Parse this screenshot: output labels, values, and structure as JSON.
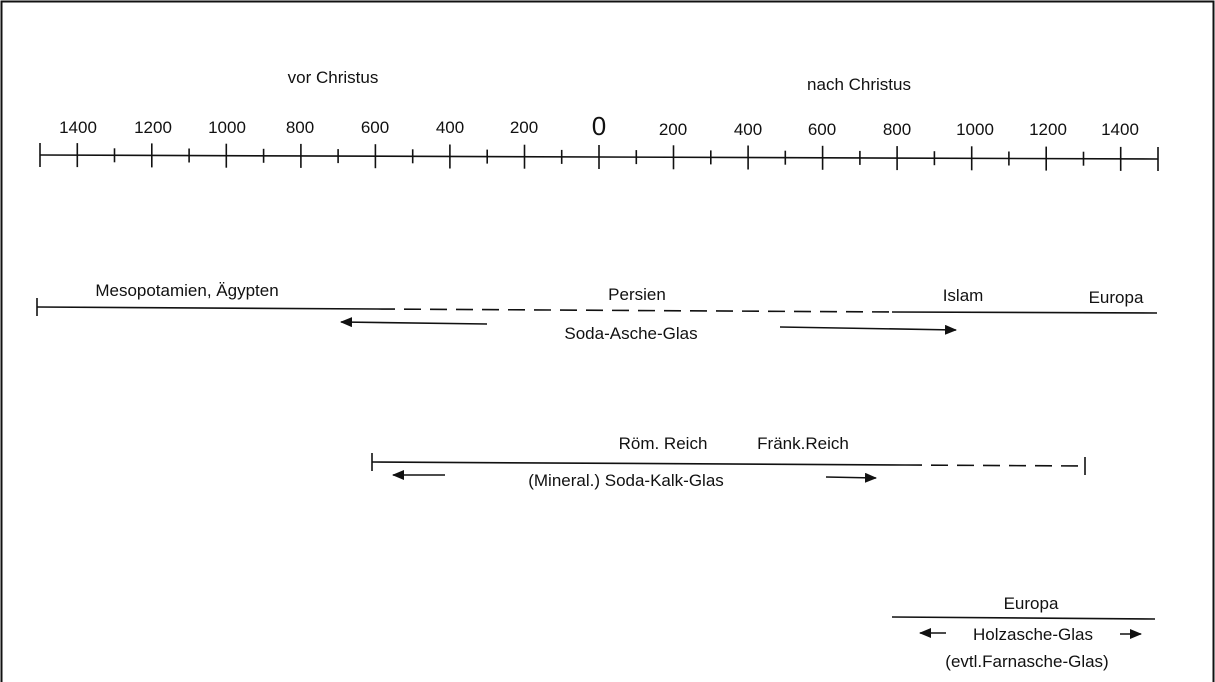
{
  "eras": {
    "bc": "vor Christus",
    "ad": "nach Christus"
  },
  "axis": {
    "bc_ticks": [
      "1400",
      "1200",
      "1000",
      "800",
      "600",
      "400",
      "200"
    ],
    "zero": "0",
    "ad_ticks": [
      "200",
      "400",
      "600",
      "800",
      "1000",
      "1200",
      "1400"
    ],
    "range": [
      -1500,
      1500
    ]
  },
  "tracks": [
    {
      "type": "Soda-Asche-Glas",
      "regions": [
        "Mesopotamien, Ägypten",
        "Persien",
        "Islam",
        "Europa"
      ],
      "solid_spans": [
        [
          -1500,
          -600
        ],
        [
          800,
          1500
        ]
      ],
      "dashed_spans": [
        [
          -600,
          800
        ]
      ],
      "spread_arrows": [
        [
          -300,
          -700
        ],
        [
          500,
          1000
        ]
      ]
    },
    {
      "type": "(Mineral.) Soda-Kalk-Glas",
      "regions": [
        "Röm. Reich",
        "Fränk.Reich"
      ],
      "solid_spans": [
        [
          -600,
          800
        ]
      ],
      "dashed_spans": [
        [
          800,
          1300
        ]
      ],
      "spread_arrows": [
        [
          -400,
          -550
        ],
        [
          600,
          750
        ]
      ]
    },
    {
      "type": "Holzasche-Glas",
      "note": "(evtl.Farnasche-Glas)",
      "regions": [
        "Europa"
      ],
      "solid_spans": [
        [
          800,
          1500
        ]
      ],
      "dashed_spans": [],
      "spread_arrows": [
        [
          900,
          850
        ],
        [
          1350,
          1400
        ]
      ]
    }
  ]
}
